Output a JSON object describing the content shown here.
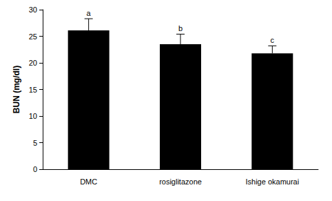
{
  "chart_data": {
    "type": "bar",
    "y_label": "BUN (mg/dl)",
    "categories": [
      "DMC",
      "rosiglitazone",
      "Ishige okamurai"
    ],
    "values": [
      26.1,
      23.5,
      21.8
    ],
    "errors": [
      2.2,
      1.9,
      1.4
    ],
    "annotations": [
      "a",
      "b",
      "c"
    ],
    "color": "#000000",
    "ylim": [
      0,
      30
    ],
    "yticks": [
      0,
      5,
      10,
      15,
      20,
      25,
      30
    ],
    "grid": false
  }
}
